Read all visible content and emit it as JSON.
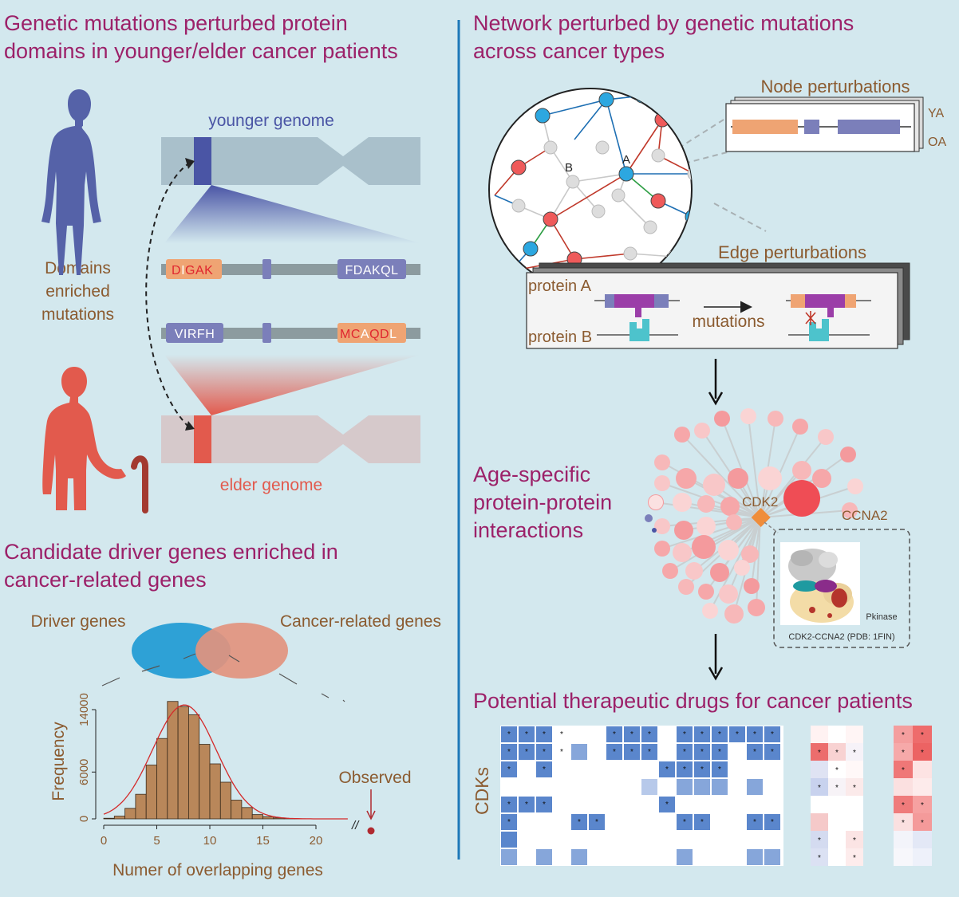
{
  "colors": {
    "background": "#d3e8ee",
    "title": "#9c2169",
    "label": "#8b5b30",
    "younger": "#5562a8",
    "elder": "#e25a4d",
    "divider": "#1d78b8",
    "domain_orange": "#efa473",
    "domain_purple": "#7b7fba"
  },
  "panel_a": {
    "title_line1": "Genetic mutations perturbed protein",
    "title_line2": "domains in younger/elder cancer patients",
    "younger_label": "younger genome",
    "elder_label": "elder genome",
    "domains_line1": "Domains",
    "domains_line2": "enriched",
    "domains_line3": "mutations",
    "seq_top_left": [
      "D",
      "I",
      "G",
      "A",
      "K"
    ],
    "seq_top_right": "FDAKQL",
    "seq_bottom_left": "VIRFH",
    "seq_bottom_right": [
      "M",
      "C",
      "A",
      "Q",
      "D",
      "L"
    ]
  },
  "panel_b": {
    "title_line1": "Network perturbed by genetic mutations",
    "title_line2": "across cancer types",
    "node_a": "A",
    "node_b": "B",
    "node_perturbations": "Node perturbations",
    "ya": "YA",
    "oa": "OA",
    "edge_perturbations": "Edge perturbations",
    "protein_a": "protein A",
    "protein_b": "protein B",
    "mutations": "mutations"
  },
  "panel_c": {
    "title_line1": "Age-specific",
    "title_line2": "protein-protein",
    "title_line3": "interactions",
    "hub": "CDK2",
    "partner": "CCNA2",
    "pkinase": "Pkinase",
    "structure_caption": "CDK2-CCNA2 (PDB: 1FIN)"
  },
  "panel_d": {
    "title_line1": "Candidate driver genes enriched in",
    "title_line2": "cancer-related genes",
    "driver_genes": "Driver genes",
    "cancer_related": "Cancer-related genes",
    "observed": "Observed",
    "break_mark": "//"
  },
  "chart_data": {
    "type": "bar",
    "xlabel": "Numer of overlapping genes",
    "ylabel": "Frequency",
    "x_ticks": [
      "0",
      "5",
      "10",
      "15",
      "20"
    ],
    "y_ticks": [
      "0",
      "6000",
      "14000"
    ],
    "bins_start": [
      0,
      1,
      2,
      3,
      4,
      5,
      6,
      7,
      8,
      9,
      10,
      11,
      12,
      13,
      14,
      15,
      16,
      17,
      18,
      19,
      20
    ],
    "values": [
      80,
      350,
      1350,
      3150,
      6900,
      10300,
      15050,
      14400,
      13350,
      9550,
      7050,
      4700,
      2400,
      1450,
      550,
      280,
      120,
      40,
      15,
      5,
      2
    ],
    "fit_curve": "normal",
    "xlim": [
      0,
      20
    ],
    "ylim": [
      0,
      14000
    ]
  },
  "panel_e": {
    "title": "Potential therapeutic drugs for cancer patients",
    "ylabel": "CDKs"
  }
}
